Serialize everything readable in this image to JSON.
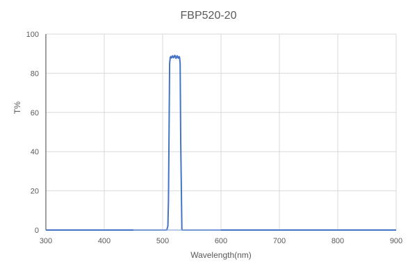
{
  "chart_data": {
    "type": "line",
    "title": "FBP520-20",
    "xlabel": "Wavelength(nm)",
    "ylabel": "T%",
    "xlim": [
      300,
      900
    ],
    "ylim": [
      0,
      100
    ],
    "xticks": [
      300,
      400,
      500,
      600,
      700,
      800,
      900
    ],
    "yticks": [
      0,
      20,
      40,
      60,
      80,
      100
    ],
    "grid": true,
    "legend": "none",
    "series": [
      {
        "name": "",
        "color": "#4472C4",
        "x": [
          300,
          507,
          509,
          510,
          511,
          512,
          513,
          514,
          515,
          516,
          517,
          518,
          519,
          520,
          521,
          522,
          523,
          524,
          525,
          526,
          527,
          528,
          529,
          530,
          531,
          533,
          600,
          900
        ],
        "y": [
          0,
          0,
          2,
          15,
          50,
          85,
          88,
          88.5,
          87.8,
          88.4,
          88.9,
          88.1,
          87.9,
          88.8,
          89.1,
          88.2,
          87.6,
          88.6,
          88.9,
          88.0,
          87.7,
          88.5,
          88.2,
          85,
          45,
          0,
          0,
          0
        ]
      },
      {
        "name": "",
        "color": "#8FAADC",
        "x": [
          450,
          600
        ],
        "y": [
          0,
          0
        ]
      }
    ]
  }
}
